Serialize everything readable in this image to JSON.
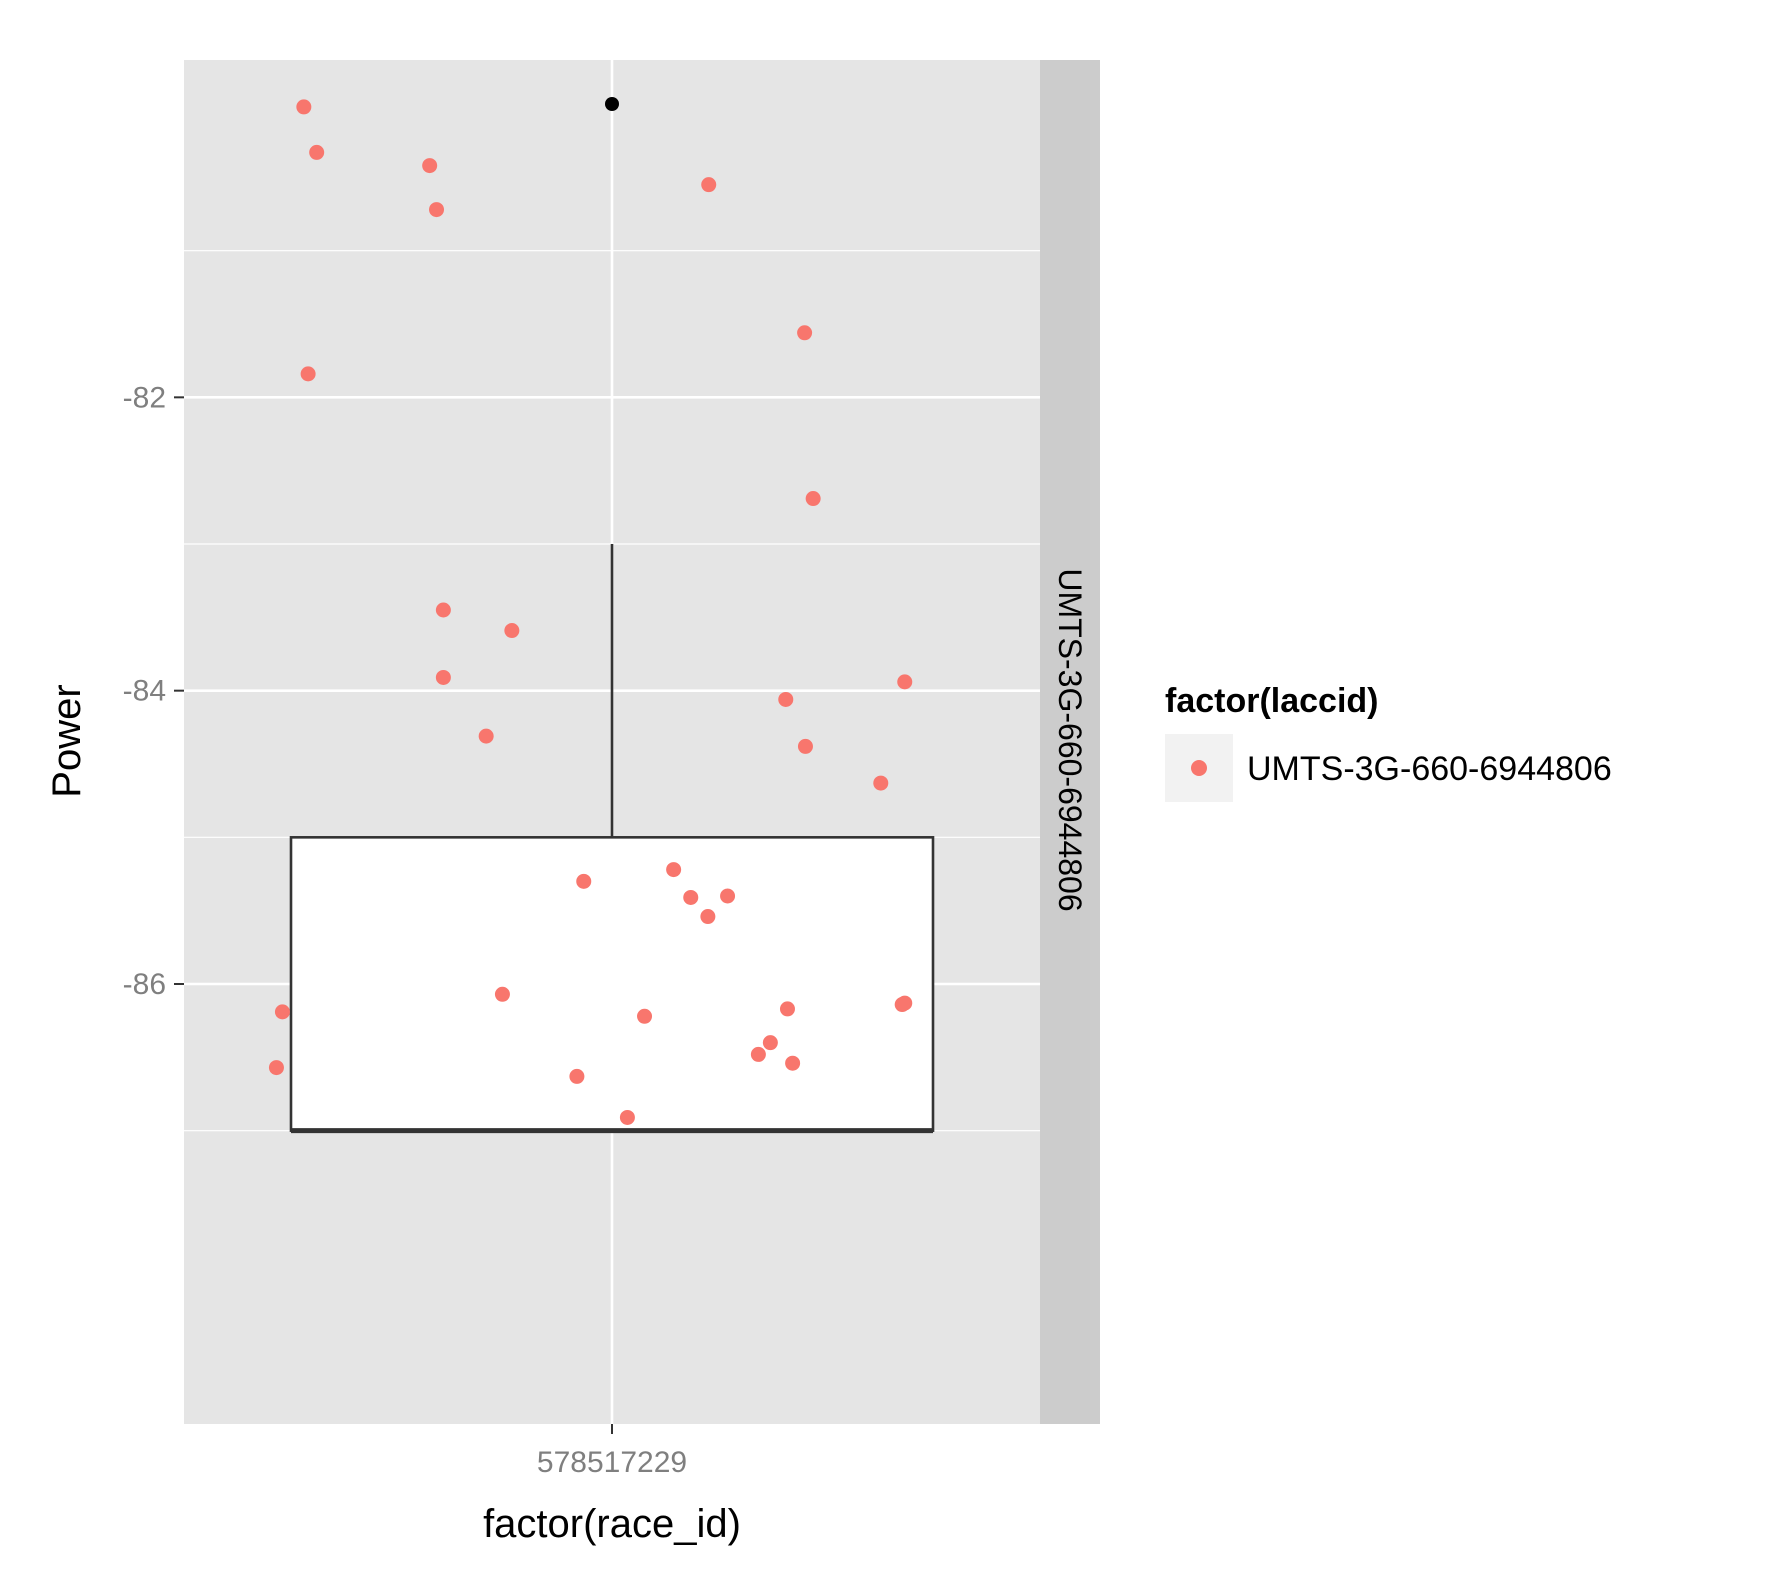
{
  "chart_data": {
    "type": "scatter",
    "overlay": "boxplot",
    "xlabel": "factor(race_id)",
    "ylabel": "Power",
    "categories": [
      "578517229"
    ],
    "facet_label": "UMTS-3G-660-6944806",
    "legend": {
      "title": "factor(laccid)",
      "entries": [
        "UMTS-3G-660-6944806"
      ],
      "placement": "right"
    },
    "ylim": [
      -89.0,
      -79.7
    ],
    "yticks": [
      -82,
      -84,
      -86
    ],
    "grid": true,
    "colors": {
      "panel": "#e5e5e5",
      "grid": "#ffffff",
      "strip": "#cccccc",
      "point": "#f8766d",
      "box_fill": "#ffffff",
      "box_line": "#333333",
      "outlier": "#000000"
    },
    "boxplot": {
      "category": "578517229",
      "whisker_low": -87.0,
      "q1": -87.0,
      "median": -87.0,
      "q3": -85.0,
      "whisker_high": -83.0,
      "outliers": [
        -80.0
      ]
    },
    "series": [
      {
        "name": "UMTS-3G-660-6944806",
        "points": [
          {
            "x": -0.36,
            "y": -80.02
          },
          {
            "x": -0.345,
            "y": -80.33
          },
          {
            "x": -0.213,
            "y": -80.42
          },
          {
            "x": -0.205,
            "y": -80.72
          },
          {
            "x": 0.113,
            "y": -80.55
          },
          {
            "x": -0.355,
            "y": -81.84
          },
          {
            "x": 0.225,
            "y": -81.56
          },
          {
            "x": 0.235,
            "y": -82.69
          },
          {
            "x": -0.197,
            "y": -83.45
          },
          {
            "x": -0.117,
            "y": -83.59
          },
          {
            "x": -0.197,
            "y": -83.91
          },
          {
            "x": 0.342,
            "y": -83.94
          },
          {
            "x": 0.203,
            "y": -84.06
          },
          {
            "x": -0.147,
            "y": -84.31
          },
          {
            "x": 0.226,
            "y": -84.38
          },
          {
            "x": 0.314,
            "y": -84.63
          },
          {
            "x": -0.033,
            "y": -85.3
          },
          {
            "x": 0.072,
            "y": -85.22
          },
          {
            "x": 0.092,
            "y": -85.41
          },
          {
            "x": 0.135,
            "y": -85.4
          },
          {
            "x": 0.112,
            "y": -85.54
          },
          {
            "x": -0.128,
            "y": -86.07
          },
          {
            "x": -0.385,
            "y": -86.19
          },
          {
            "x": 0.038,
            "y": -86.22
          },
          {
            "x": 0.205,
            "y": -86.17
          },
          {
            "x": 0.342,
            "y": -86.13
          },
          {
            "x": 0.339,
            "y": -86.14
          },
          {
            "x": 0.185,
            "y": -86.4
          },
          {
            "x": 0.171,
            "y": -86.48
          },
          {
            "x": 0.211,
            "y": -86.54
          },
          {
            "x": -0.392,
            "y": -86.57
          },
          {
            "x": -0.041,
            "y": -86.63
          },
          {
            "x": 0.018,
            "y": -86.91
          }
        ]
      }
    ]
  }
}
